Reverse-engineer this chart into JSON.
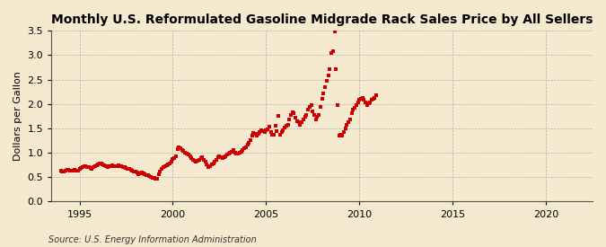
{
  "title": "Monthly U.S. Reformulated Gasoline Midgrade Rack Sales Price by All Sellers",
  "ylabel": "Dollars per Gallon",
  "source": "Source: U.S. Energy Information Administration",
  "bg_color": "#f5ead0",
  "line_color": "#cc0000",
  "grid_color": "#999999",
  "xlim": [
    1993.5,
    2022.5
  ],
  "ylim": [
    0.0,
    3.5
  ],
  "xticks": [
    1995,
    2000,
    2005,
    2010,
    2015,
    2020
  ],
  "yticks": [
    0.0,
    0.5,
    1.0,
    1.5,
    2.0,
    2.5,
    3.0,
    3.5
  ],
  "data": [
    [
      1994.0,
      0.63
    ],
    [
      1994.08,
      0.62
    ],
    [
      1994.17,
      0.61
    ],
    [
      1994.25,
      0.63
    ],
    [
      1994.33,
      0.65
    ],
    [
      1994.42,
      0.66
    ],
    [
      1994.5,
      0.64
    ],
    [
      1994.58,
      0.63
    ],
    [
      1994.67,
      0.64
    ],
    [
      1994.75,
      0.65
    ],
    [
      1994.83,
      0.64
    ],
    [
      1994.92,
      0.63
    ],
    [
      1995.0,
      0.67
    ],
    [
      1995.08,
      0.69
    ],
    [
      1995.17,
      0.71
    ],
    [
      1995.25,
      0.73
    ],
    [
      1995.33,
      0.72
    ],
    [
      1995.42,
      0.71
    ],
    [
      1995.5,
      0.7
    ],
    [
      1995.58,
      0.69
    ],
    [
      1995.67,
      0.68
    ],
    [
      1995.75,
      0.7
    ],
    [
      1995.83,
      0.72
    ],
    [
      1995.92,
      0.74
    ],
    [
      1996.0,
      0.76
    ],
    [
      1996.08,
      0.78
    ],
    [
      1996.17,
      0.79
    ],
    [
      1996.25,
      0.77
    ],
    [
      1996.33,
      0.75
    ],
    [
      1996.42,
      0.73
    ],
    [
      1996.5,
      0.71
    ],
    [
      1996.58,
      0.72
    ],
    [
      1996.67,
      0.73
    ],
    [
      1996.75,
      0.74
    ],
    [
      1996.83,
      0.73
    ],
    [
      1996.92,
      0.72
    ],
    [
      1997.0,
      0.73
    ],
    [
      1997.08,
      0.74
    ],
    [
      1997.17,
      0.73
    ],
    [
      1997.25,
      0.72
    ],
    [
      1997.33,
      0.71
    ],
    [
      1997.42,
      0.7
    ],
    [
      1997.5,
      0.69
    ],
    [
      1997.58,
      0.68
    ],
    [
      1997.67,
      0.67
    ],
    [
      1997.75,
      0.66
    ],
    [
      1997.83,
      0.64
    ],
    [
      1997.92,
      0.62
    ],
    [
      1998.0,
      0.61
    ],
    [
      1998.08,
      0.59
    ],
    [
      1998.17,
      0.57
    ],
    [
      1998.25,
      0.58
    ],
    [
      1998.33,
      0.59
    ],
    [
      1998.42,
      0.58
    ],
    [
      1998.5,
      0.56
    ],
    [
      1998.58,
      0.55
    ],
    [
      1998.67,
      0.54
    ],
    [
      1998.75,
      0.53
    ],
    [
      1998.83,
      0.51
    ],
    [
      1998.92,
      0.49
    ],
    [
      1999.0,
      0.48
    ],
    [
      1999.08,
      0.47
    ],
    [
      1999.17,
      0.46
    ],
    [
      1999.25,
      0.56
    ],
    [
      1999.33,
      0.62
    ],
    [
      1999.42,
      0.67
    ],
    [
      1999.5,
      0.7
    ],
    [
      1999.58,
      0.72
    ],
    [
      1999.67,
      0.74
    ],
    [
      1999.75,
      0.76
    ],
    [
      1999.83,
      0.78
    ],
    [
      1999.92,
      0.82
    ],
    [
      2000.0,
      0.87
    ],
    [
      2000.08,
      0.9
    ],
    [
      2000.17,
      0.92
    ],
    [
      2000.25,
      1.08
    ],
    [
      2000.33,
      1.12
    ],
    [
      2000.42,
      1.09
    ],
    [
      2000.5,
      1.06
    ],
    [
      2000.58,
      1.04
    ],
    [
      2000.67,
      1.01
    ],
    [
      2000.75,
      0.99
    ],
    [
      2000.83,
      0.96
    ],
    [
      2000.92,
      0.93
    ],
    [
      2001.0,
      0.89
    ],
    [
      2001.08,
      0.86
    ],
    [
      2001.17,
      0.84
    ],
    [
      2001.25,
      0.81
    ],
    [
      2001.33,
      0.83
    ],
    [
      2001.42,
      0.86
    ],
    [
      2001.5,
      0.89
    ],
    [
      2001.58,
      0.91
    ],
    [
      2001.67,
      0.86
    ],
    [
      2001.75,
      0.81
    ],
    [
      2001.83,
      0.76
    ],
    [
      2001.92,
      0.71
    ],
    [
      2002.0,
      0.73
    ],
    [
      2002.08,
      0.76
    ],
    [
      2002.17,
      0.79
    ],
    [
      2002.25,
      0.81
    ],
    [
      2002.33,
      0.86
    ],
    [
      2002.42,
      0.91
    ],
    [
      2002.5,
      0.93
    ],
    [
      2002.58,
      0.91
    ],
    [
      2002.67,
      0.89
    ],
    [
      2002.75,
      0.91
    ],
    [
      2002.83,
      0.93
    ],
    [
      2002.92,
      0.96
    ],
    [
      2003.0,
      0.99
    ],
    [
      2003.08,
      1.01
    ],
    [
      2003.17,
      1.03
    ],
    [
      2003.25,
      1.06
    ],
    [
      2003.33,
      1.01
    ],
    [
      2003.42,
      0.99
    ],
    [
      2003.5,
      0.98
    ],
    [
      2003.58,
      1.01
    ],
    [
      2003.67,
      1.03
    ],
    [
      2003.75,
      1.06
    ],
    [
      2003.83,
      1.09
    ],
    [
      2003.92,
      1.11
    ],
    [
      2004.0,
      1.16
    ],
    [
      2004.08,
      1.21
    ],
    [
      2004.17,
      1.26
    ],
    [
      2004.25,
      1.36
    ],
    [
      2004.33,
      1.41
    ],
    [
      2004.42,
      1.39
    ],
    [
      2004.5,
      1.36
    ],
    [
      2004.58,
      1.39
    ],
    [
      2004.67,
      1.43
    ],
    [
      2004.75,
      1.46
    ],
    [
      2004.83,
      1.44
    ],
    [
      2004.92,
      1.43
    ],
    [
      2005.0,
      1.46
    ],
    [
      2005.08,
      1.49
    ],
    [
      2005.17,
      1.53
    ],
    [
      2005.25,
      1.42
    ],
    [
      2005.33,
      1.37
    ],
    [
      2005.42,
      1.38
    ],
    [
      2005.5,
      1.55
    ],
    [
      2005.58,
      1.45
    ],
    [
      2005.67,
      1.75
    ],
    [
      2005.75,
      1.38
    ],
    [
      2005.83,
      1.42
    ],
    [
      2005.92,
      1.47
    ],
    [
      2006.0,
      1.52
    ],
    [
      2006.08,
      1.55
    ],
    [
      2006.17,
      1.58
    ],
    [
      2006.25,
      1.68
    ],
    [
      2006.33,
      1.78
    ],
    [
      2006.42,
      1.83
    ],
    [
      2006.5,
      1.81
    ],
    [
      2006.58,
      1.72
    ],
    [
      2006.67,
      1.65
    ],
    [
      2006.75,
      1.62
    ],
    [
      2006.83,
      1.58
    ],
    [
      2006.92,
      1.63
    ],
    [
      2007.0,
      1.68
    ],
    [
      2007.08,
      1.73
    ],
    [
      2007.17,
      1.78
    ],
    [
      2007.25,
      1.88
    ],
    [
      2007.33,
      1.95
    ],
    [
      2007.42,
      1.98
    ],
    [
      2007.5,
      1.85
    ],
    [
      2007.58,
      1.78
    ],
    [
      2007.67,
      1.68
    ],
    [
      2007.75,
      1.73
    ],
    [
      2007.83,
      1.78
    ],
    [
      2007.92,
      1.95
    ],
    [
      2008.0,
      2.1
    ],
    [
      2008.08,
      2.22
    ],
    [
      2008.17,
      2.35
    ],
    [
      2008.25,
      2.48
    ],
    [
      2008.33,
      2.58
    ],
    [
      2008.42,
      2.72
    ],
    [
      2008.5,
      3.05
    ],
    [
      2008.58,
      3.08
    ],
    [
      2008.67,
      3.48
    ],
    [
      2008.75,
      2.72
    ],
    [
      2008.83,
      1.98
    ],
    [
      2008.92,
      1.35
    ],
    [
      2009.0,
      1.38
    ],
    [
      2009.08,
      1.35
    ],
    [
      2009.17,
      1.42
    ],
    [
      2009.25,
      1.5
    ],
    [
      2009.33,
      1.58
    ],
    [
      2009.42,
      1.62
    ],
    [
      2009.5,
      1.68
    ],
    [
      2009.58,
      1.82
    ],
    [
      2009.67,
      1.88
    ],
    [
      2009.75,
      1.92
    ],
    [
      2009.83,
      1.98
    ],
    [
      2009.92,
      2.03
    ],
    [
      2010.0,
      2.08
    ],
    [
      2010.08,
      2.11
    ],
    [
      2010.17,
      2.13
    ],
    [
      2010.25,
      2.08
    ],
    [
      2010.33,
      2.03
    ],
    [
      2010.42,
      1.98
    ],
    [
      2010.5,
      2.01
    ],
    [
      2010.58,
      2.03
    ],
    [
      2010.67,
      2.08
    ],
    [
      2010.75,
      2.11
    ],
    [
      2010.83,
      2.13
    ],
    [
      2010.92,
      2.18
    ]
  ]
}
